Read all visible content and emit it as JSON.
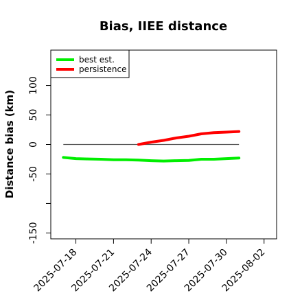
{
  "chart_data": {
    "type": "line",
    "title": "Bias, IIEE distance",
    "xlabel": "",
    "ylabel": "Distance bias (km)",
    "x_type": "date",
    "xlim": [
      "2025-07-16",
      "2025-08-03"
    ],
    "ylim": [
      -160,
      160
    ],
    "x_ticks": [
      "2025-07-18",
      "2025-07-21",
      "2025-07-24",
      "2025-07-27",
      "2025-07-30",
      "2025-08-02"
    ],
    "y_ticks": [
      -150,
      -50,
      0,
      50,
      100
    ],
    "y_tick_labels": [
      "-150",
      "-50",
      "0",
      "50",
      "100"
    ],
    "grid": false,
    "legend_position": "top-left",
    "reference_line": {
      "y": 0,
      "x_start": "2025-07-17",
      "x_end": "2025-07-31",
      "color": "#555555"
    },
    "series": [
      {
        "name": "best est.",
        "color": "#00ee00",
        "points": [
          {
            "x": "2025-07-17",
            "y": -22
          },
          {
            "x": "2025-07-18",
            "y": -24
          },
          {
            "x": "2025-07-19",
            "y": -24.5
          },
          {
            "x": "2025-07-20",
            "y": -25
          },
          {
            "x": "2025-07-21",
            "y": -26
          },
          {
            "x": "2025-07-22",
            "y": -26
          },
          {
            "x": "2025-07-23",
            "y": -26.5
          },
          {
            "x": "2025-07-24",
            "y": -27.5
          },
          {
            "x": "2025-07-25",
            "y": -28
          },
          {
            "x": "2025-07-26",
            "y": -27.5
          },
          {
            "x": "2025-07-27",
            "y": -27
          },
          {
            "x": "2025-07-28",
            "y": -25
          },
          {
            "x": "2025-07-29",
            "y": -25
          },
          {
            "x": "2025-07-30",
            "y": -24
          },
          {
            "x": "2025-07-31",
            "y": -23
          }
        ]
      },
      {
        "name": "persistence",
        "color": "#ff0000",
        "points": [
          {
            "x": "2025-07-23",
            "y": 0
          },
          {
            "x": "2025-07-24",
            "y": 4
          },
          {
            "x": "2025-07-25",
            "y": 7
          },
          {
            "x": "2025-07-26",
            "y": 11
          },
          {
            "x": "2025-07-27",
            "y": 14
          },
          {
            "x": "2025-07-28",
            "y": 18
          },
          {
            "x": "2025-07-29",
            "y": 20
          },
          {
            "x": "2025-07-30",
            "y": 21
          },
          {
            "x": "2025-07-31",
            "y": 22
          }
        ]
      }
    ]
  }
}
